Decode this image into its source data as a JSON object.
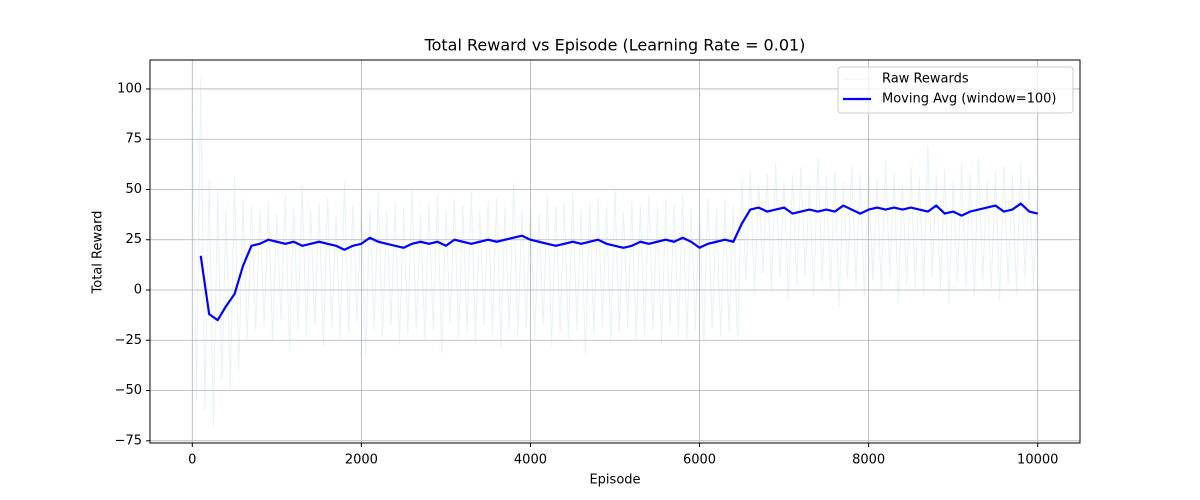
{
  "chart_data": {
    "type": "line",
    "title": "Total Reward vs Episode (Learning Rate = 0.01)",
    "x_label": "Episode",
    "y_label": "Total Reward",
    "xlim": [
      -500,
      10500
    ],
    "ylim": [
      -76.1,
      114.4
    ],
    "xticks": [
      0,
      2000,
      4000,
      6000,
      8000,
      10000
    ],
    "yticks": [
      {
        "value": -75,
        "label": "−75"
      },
      {
        "value": -50,
        "label": "−50"
      },
      {
        "value": -25,
        "label": "−25"
      },
      0,
      25,
      50,
      75,
      100
    ],
    "grid": true,
    "legend": "upper right",
    "series": [
      {
        "name": "Raw Rewards",
        "color": "#add8e6",
        "opacity": 0.3,
        "width": 1,
        "x": [
          0,
          50,
          100,
          150,
          200,
          250,
          300,
          350,
          400,
          450,
          500,
          550,
          600,
          650,
          700,
          750,
          800,
          850,
          900,
          950,
          1000,
          1050,
          1100,
          1150,
          1200,
          1250,
          1300,
          1350,
          1400,
          1450,
          1500,
          1550,
          1600,
          1650,
          1700,
          1750,
          1800,
          1850,
          1900,
          1950,
          2000,
          2050,
          2100,
          2150,
          2200,
          2250,
          2300,
          2350,
          2400,
          2450,
          2500,
          2550,
          2600,
          2650,
          2700,
          2750,
          2800,
          2850,
          2900,
          2950,
          3000,
          3050,
          3100,
          3150,
          3200,
          3250,
          3300,
          3350,
          3400,
          3450,
          3500,
          3550,
          3600,
          3650,
          3700,
          3750,
          3800,
          3850,
          3900,
          3950,
          4000,
          4050,
          4100,
          4150,
          4200,
          4250,
          4300,
          4350,
          4400,
          4450,
          4500,
          4550,
          4600,
          4650,
          4700,
          4750,
          4800,
          4850,
          4900,
          4950,
          5000,
          5050,
          5100,
          5150,
          5200,
          5250,
          5300,
          5350,
          5400,
          5450,
          5500,
          5550,
          5600,
          5650,
          5700,
          5750,
          5800,
          5850,
          5900,
          5950,
          6000,
          6050,
          6100,
          6150,
          6200,
          6250,
          6300,
          6350,
          6400,
          6450,
          6500,
          6550,
          6600,
          6650,
          6700,
          6750,
          6800,
          6850,
          6900,
          6950,
          7000,
          7050,
          7100,
          7150,
          7200,
          7250,
          7300,
          7350,
          7400,
          7450,
          7500,
          7550,
          7600,
          7650,
          7700,
          7750,
          7800,
          7850,
          7900,
          7950,
          8000,
          8050,
          8100,
          8150,
          8200,
          8250,
          8300,
          8350,
          8400,
          8450,
          8500,
          8550,
          8600,
          8650,
          8700,
          8750,
          8800,
          8850,
          8900,
          8950,
          9000,
          9050,
          9100,
          9150,
          9200,
          9250,
          9300,
          9350,
          9400,
          9450,
          9500,
          9550,
          9600,
          9650,
          9700,
          9750,
          9800,
          9850,
          9900,
          9950,
          10000
        ],
        "values": [
          95,
          -55,
          105,
          -60,
          55,
          -68,
          48,
          -45,
          40,
          -50,
          56,
          -40,
          45,
          -25,
          42,
          -20,
          40,
          -18,
          44,
          -25,
          38,
          -15,
          47,
          -30,
          41,
          -20,
          52,
          -22,
          39,
          -17,
          43,
          -28,
          46,
          -19,
          37,
          -24,
          54,
          -21,
          42,
          -16,
          45,
          -33,
          40,
          -20,
          48,
          -23,
          39,
          -18,
          44,
          -27,
          41,
          -22,
          50,
          -19,
          38,
          -25,
          43,
          -20,
          47,
          -31,
          40,
          -17,
          45,
          -24,
          42,
          -21,
          49,
          -26,
          39,
          -18,
          44,
          -22,
          46,
          -29,
          41,
          -20,
          53,
          -23,
          40,
          -19,
          45,
          -25,
          38,
          -17,
          47,
          -28,
          42,
          -21,
          44,
          -24,
          48,
          -20,
          40,
          -32,
          43,
          -22,
          46,
          -18,
          41,
          -26,
          50,
          -21,
          39,
          -19,
          44,
          -25,
          42,
          -23,
          47,
          -20,
          40,
          -27,
          45,
          -18,
          43,
          -22,
          48,
          -24,
          41,
          -20,
          44,
          -26,
          46,
          -19,
          40,
          -23,
          45,
          -21,
          42,
          -25,
          55,
          5,
          60,
          -2,
          52,
          8,
          58,
          0,
          63,
          6,
          54,
          -5,
          57,
          3,
          61,
          7,
          53,
          -3,
          66,
          4,
          56,
          1,
          59,
          -8,
          54,
          6,
          62,
          2,
          57,
          -4,
          60,
          5,
          55,
          0,
          64,
          7,
          58,
          -6,
          53,
          3,
          61,
          1,
          56,
          -2,
          72,
          6,
          57,
          0,
          60,
          -7,
          54,
          4,
          63,
          2,
          58,
          -3,
          66,
          5,
          55,
          1,
          59,
          -5,
          62,
          3,
          57,
          -2,
          64,
          6,
          56,
          0,
          54
        ]
      },
      {
        "name": "Moving Avg (window=100)",
        "color": "#0000ff",
        "opacity": 1,
        "width": 2.2,
        "x": [
          100,
          200,
          300,
          400,
          500,
          600,
          700,
          800,
          900,
          1000,
          1100,
          1200,
          1300,
          1400,
          1500,
          1600,
          1700,
          1800,
          1900,
          2000,
          2100,
          2200,
          2300,
          2400,
          2500,
          2600,
          2700,
          2800,
          2900,
          3000,
          3100,
          3200,
          3300,
          3400,
          3500,
          3600,
          3700,
          3800,
          3900,
          4000,
          4100,
          4200,
          4300,
          4400,
          4500,
          4600,
          4700,
          4800,
          4900,
          5000,
          5100,
          5200,
          5300,
          5400,
          5500,
          5600,
          5700,
          5800,
          5900,
          6000,
          6100,
          6200,
          6300,
          6400,
          6500,
          6600,
          6700,
          6800,
          6900,
          7000,
          7100,
          7200,
          7300,
          7400,
          7500,
          7600,
          7700,
          7800,
          7900,
          8000,
          8100,
          8200,
          8300,
          8400,
          8500,
          8600,
          8700,
          8800,
          8900,
          9000,
          9100,
          9200,
          9300,
          9400,
          9500,
          9600,
          9700,
          9800,
          9900,
          10000
        ],
        "values": [
          17,
          -12,
          -15,
          -8,
          -2,
          12,
          22,
          23,
          25,
          24,
          23,
          24,
          22,
          23,
          24,
          23,
          22,
          20,
          22,
          23,
          26,
          24,
          23,
          22,
          21,
          23,
          24,
          23,
          24,
          22,
          25,
          24,
          23,
          24,
          25,
          24,
          25,
          26,
          27,
          25,
          24,
          23,
          22,
          23,
          24,
          23,
          24,
          25,
          23,
          22,
          21,
          22,
          24,
          23,
          24,
          25,
          24,
          26,
          24,
          21,
          23,
          24,
          25,
          24,
          33,
          40,
          41,
          39,
          40,
          41,
          38,
          39,
          40,
          39,
          40,
          39,
          42,
          40,
          38,
          40,
          41,
          40,
          41,
          40,
          41,
          40,
          39,
          42,
          38,
          39,
          37,
          39,
          40,
          41,
          42,
          39,
          40,
          43,
          39,
          38
        ]
      }
    ]
  }
}
